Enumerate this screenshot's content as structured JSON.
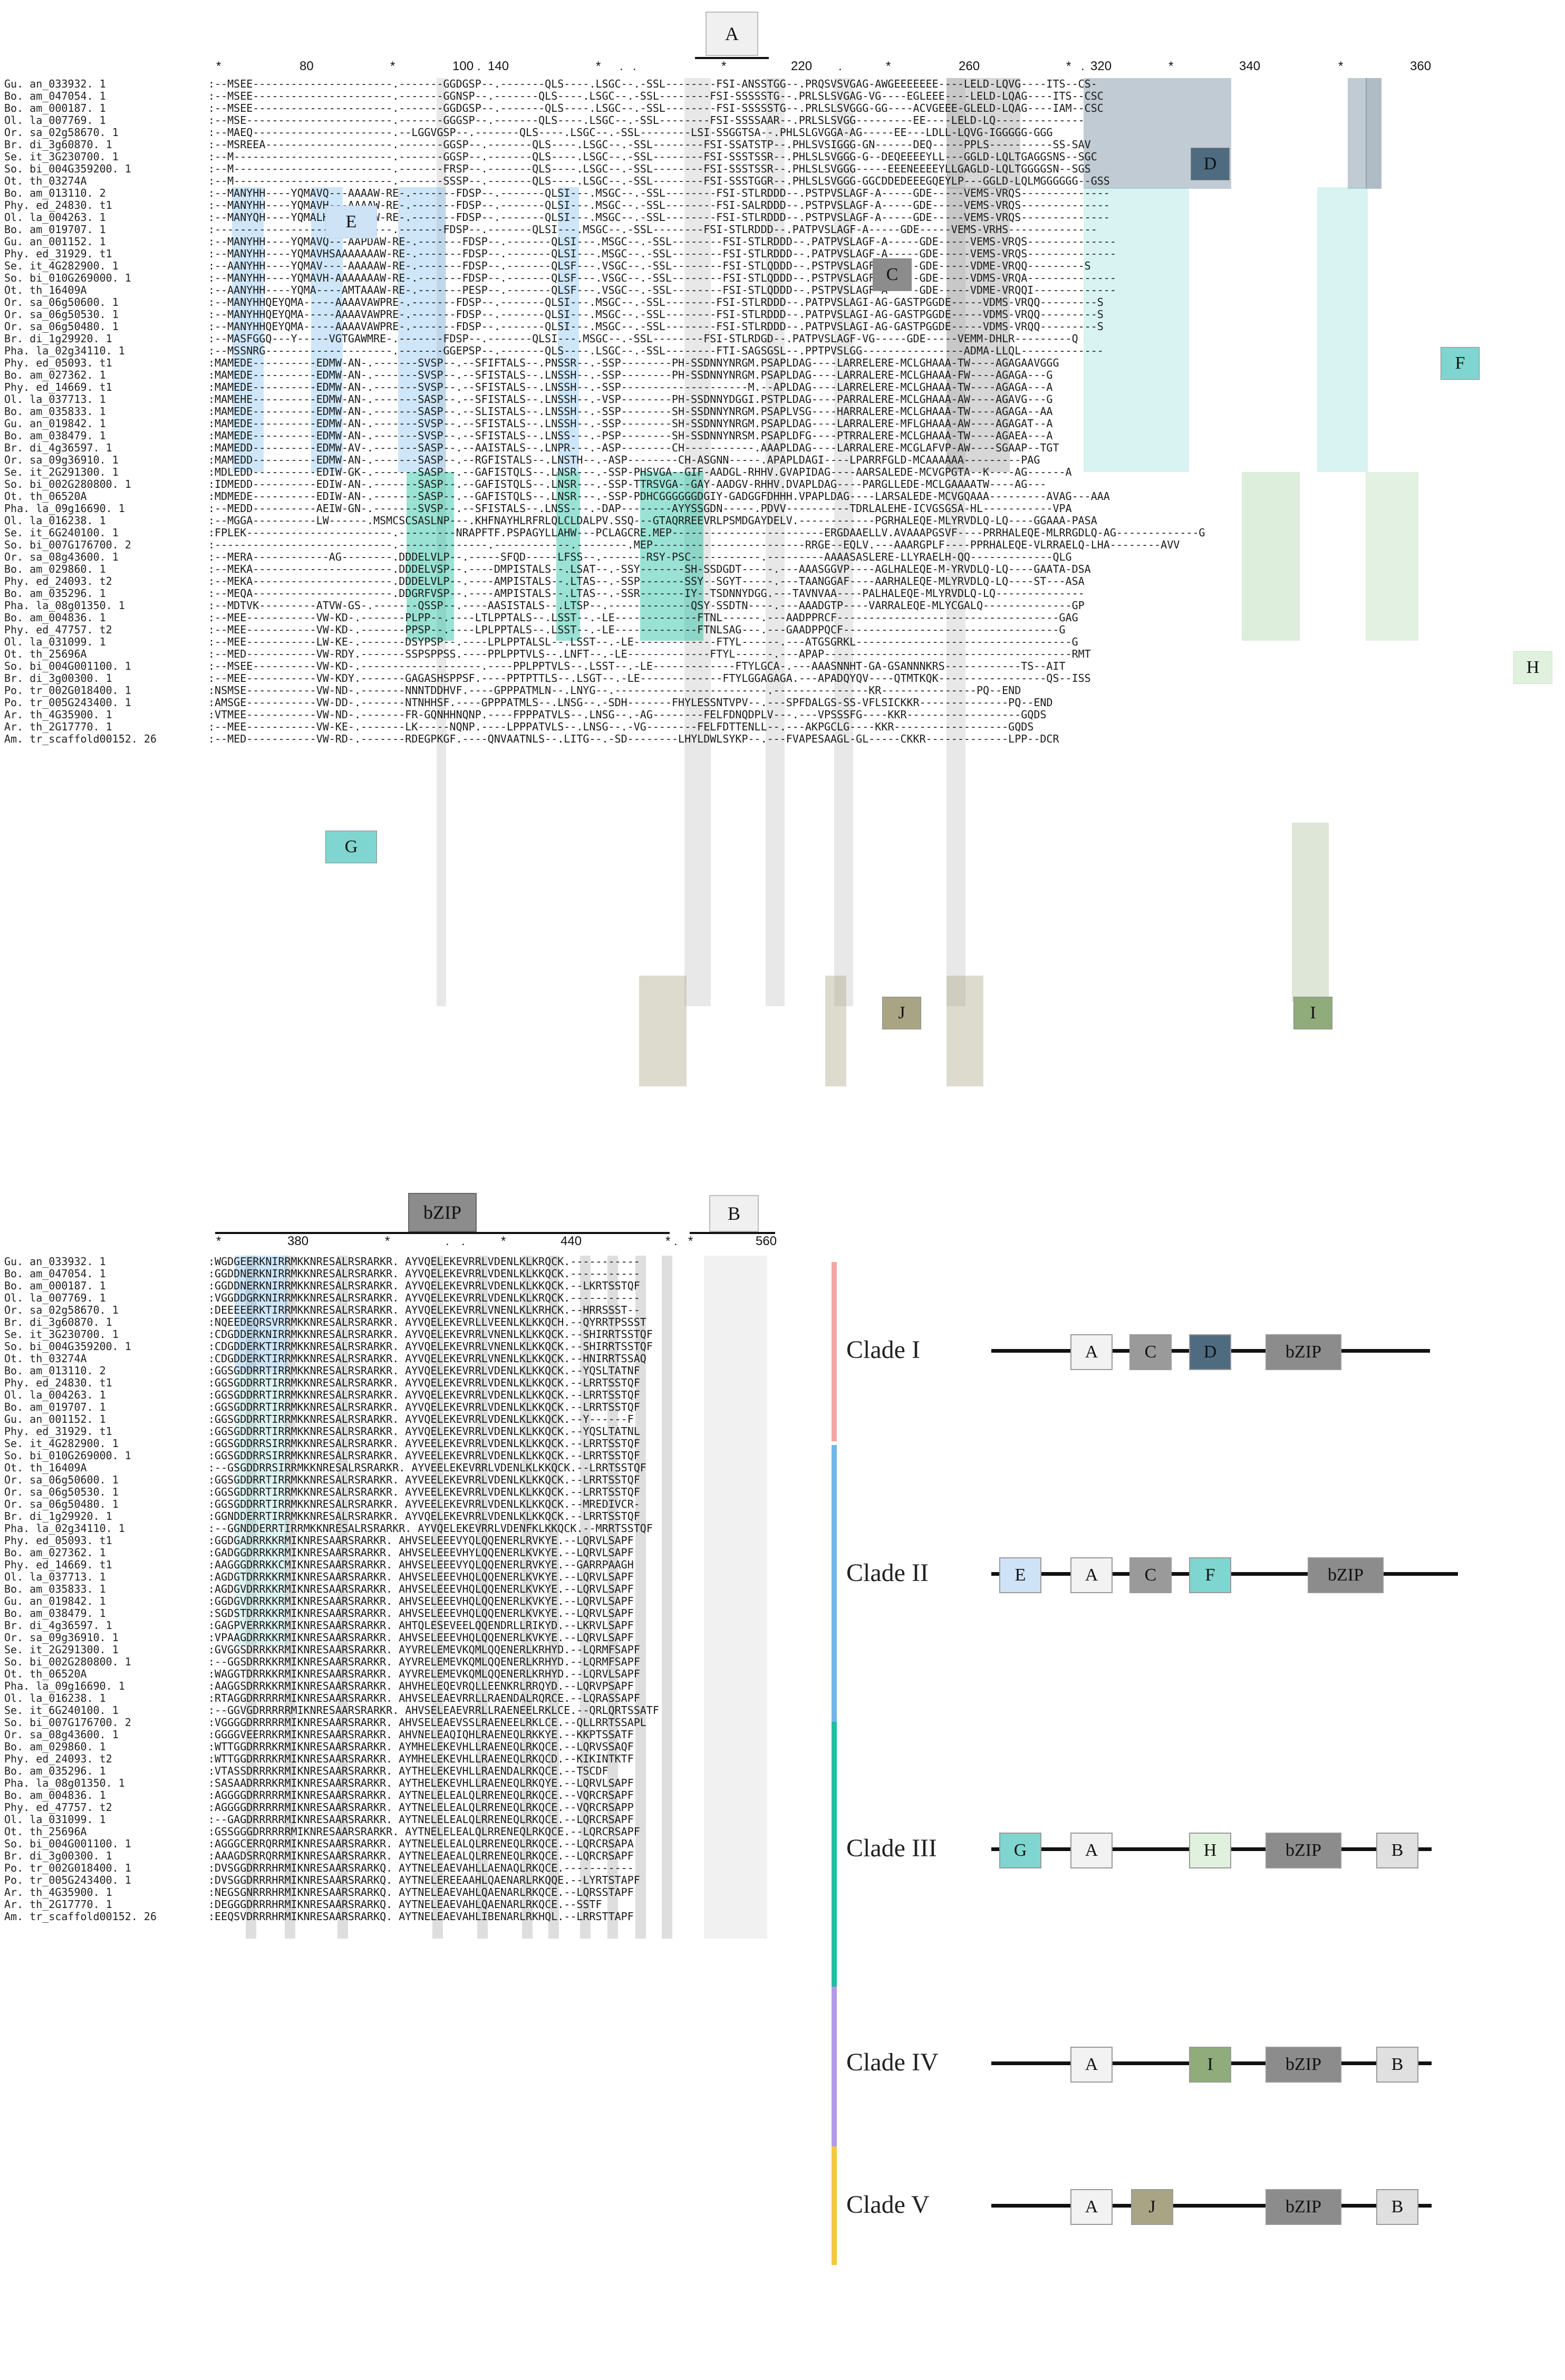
{
  "top": {
    "header_box": "A",
    "ruler": [
      "*",
      "80",
      "*",
      "100",
      ".",
      "140",
      "*",
      ".",
      ".",
      "*",
      "220",
      ".",
      "*",
      "260",
      "*",
      ".",
      "320",
      "*",
      "340",
      "*",
      "360"
    ],
    "names": [
      "Gu. an_033932. 1",
      "Bo. am_047054. 1",
      "Bo. am_000187. 1",
      "Ol. la_007769. 1",
      "Or. sa_02g58670. 1",
      "Br. di_3g60870. 1",
      "Se. it_3G230700. 1",
      "So. bi_004G359200. 1",
      "Ot. th_03274A",
      "Bo. am_013110. 2",
      "Phy. ed_24830. t1",
      "Ol. la_004263. 1",
      "Bo. am_019707. 1",
      "Gu. an_001152. 1",
      "Phy. ed_31929. t1",
      "Se. it_4G282900. 1",
      "So. bi_010G269000. 1",
      "Ot. th_16409A",
      "Or. sa_06g50600. 1",
      "Or. sa_06g50530. 1",
      "Or. sa_06g50480. 1",
      "Br. di_1g29920. 1",
      "Pha. la_02g34110. 1",
      "Phy. ed_05093. t1",
      "Bo. am_027362. 1",
      "Phy. ed_14669. t1",
      "Ol. la_037713. 1",
      "Bo. am_035833. 1",
      "Gu. an_019842. 1",
      "Bo. am_038479. 1",
      "Br. di_4g36597. 1",
      "Or. sa_09g36910. 1",
      "Se. it_2G291300. 1",
      "So. bi_002G280800. 1",
      "Ot. th_06520A",
      "Pha. la_09g16690. 1",
      "Ol. la_016238. 1",
      "Se. it_6G240100. 1",
      "So. bi_007G176700. 2",
      "Or. sa_08g43600. 1",
      "Bo. am_029860. 1",
      "Phy. ed_24093. t2",
      "Bo. am_035296. 1",
      "Pha. la_08g01350. 1",
      "Bo. am_004836. 1",
      "Phy. ed_47757. t2",
      "Ol. la_031099. 1",
      "Ot. th_25696A",
      "So. bi_004G001100. 1",
      "Br. di_3g00300. 1",
      "Po. tr_002G018400. 1",
      "Po. tr_005G243400. 1",
      "Ar. th_4G35900. 1",
      "Ar. th_2G17770. 1",
      "Am. tr_scaffold00152. 26"
    ],
    "seqs": [
      ":--MSEE----------------------.-------GGDGSP--.-------QLS----.LSGC--.-SSL--------FSI-ANSSTGG--.PRQSVSVGAG-AWGEEEEEEE----LELD-LQVG----ITS--CS-",
      ":--MSEE----------------------.-------GGNSP--.-------QLS----.LSGC--.-SSL--------FSI-SSSSSTG--.PRLSLSVGAG-VG----EGLEEE----LELD-LQAG----ITS--CSC",
      ":--MSEE----------------------.-------GGDGSP--.-------QLS----.LSGC--.-SSL--------FSI-SSSSSTG--.PRLSLSVGGG-GG----ACVGEEE-GLELD-LQAG----IAM--CSC",
      ":--MSE-----------------------.-------GGGSP--.-------QLS----.LSGC--.-SSL--------FSI-SSSSAAR--.PRLSLSVGG---------EE----LELD-LQ--------------",
      ":--MAEQ----------------------.--LGGVGSP--.-------QLS----.LSGC--.-SSL--------LSI-SSGGTSA--.PHLSLGVGGA-AG-----EE---LDLL-LQVG-IGGGGG-GGG",
      ":--MSREEA--------------------.-------GGSP--.-------QLS----.LSGC--.-SSL--------FSI-SSATSTP--.PHLSVSIGGG-GN------DEQ-----PPLS----------SS-SAV",
      ":--M-------------------------.-------GGSP--.-------QLS----.LSGC--.-SSL--------FSI-SSSTSSR--.PHLSLSVGGG-G--DEQEEEEYLL---GGLD-LQLTGAGGSNS--SGC",
      ":--M-------------------------.-------FRSP--.-------QLS----.LSGC--.-SSL--------FSI-SSSTSSR--.PHLSLSVGGG-----EEENEEEEYLLGAGLD-LQLTGGGGSN--SGS",
      ":--M-------------------------.-------SSSP--.-------QLS----.LSGC--.-SSL--------FSI-SSSTGGR--.PHLSLSVGGG-GGCDDEDEEEGQEYLP---GGLD-LQLMGGGGGG--GSS",
      ":--MANYHH----YQMAVQ---AAAAW-RE-.-------FDSP--.-------QLSI---.MSGC--.-SSL--------FSI-STLRDDD--.PSTPVSLAGF-A-----GDE-----VEMS-VRQS--------------",
      ":--MANYHH----YQMAVH---AAAAW-RE-.-------FDSP--.-------QLSI---.MSGC--.-SSL--------FSI-SALRDDD--.PSTPVSLAGF-A-----GDE-----VEMS-VRQS--------------",
      ":--MANYQH----YQMALH---AAAAW-RE-.-------FDSP--.-------QLSI---.MSGC--.-SSL--------FSI-STLRDDD--.PSTPVSLAGF-A-----GDE-----VEMS-VRQS--------------",
      ":----------------------------.-------FDSP--.-------QLSI---.MSGC--.-SSL--------FSI-STLRDDD--.PATPVSLAGF-A-----GDE-----VEMS-VRHS--------------",
      ":--MANYHH----YQMAVQ---AAPDAW-RE-.-------FDSP--.-------QLSI---.MSGC--.-SSL--------FSI-STLRDDD--.PATPVSLAGF-A-----GDE-----VEMS-VRQS--------------",
      ":--MANYHH----YQMAVHSAAAAAAAW-RE-.-------FDSP--.-------QLSI---.MSGC--.-SSL--------FSI-STLRDDD--.PATPVSLAGF-A-----GDE-----VEMS-VRQS--------------",
      ":--AANYHH----YQMAV----AAAAAW-RE-.-------FDSP--.-------QLSF---.VSGC--.-SSL--------FSI-STLQDDD--.PSTPVSLAGF-A-----GDE-----VDME-VRQQ---------S",
      ":--MANYHH----YQMAVH-AAAAAAAW-RE-.-------FDSP--.-------QLSF---.VSGC--.-SSL--------FSI-STLQDDD--.PSTPVSLAGFAA-----GDE-----VDMS-VRQA--------------",
      ":--AANYHH----YQMA----AMTAAAW-RE-.-------PESP--.-------QLSF---.VSGC--.-SSL--------FSI-STLQDDD--.PSTPVSLAGF-A-----GDE-----VDME-VRQQI-------------",
      ":--MANYHHQEYQMA-----AAAAVAWPRE-.-------FDSP--.-------QLSI---.MSGC--.-SSL--------FSI-STLRDDD--.PATPVSLAGI-AG-GASTPGGDE-----VDMS-VRQQ---------S",
      ":--MANYHHQEYQMA-----AAAAVAWPRE-.-------FDSP--.-------QLSI---.MSGC--.-SSL--------FSI-STLRDDD--.PATPVSLAGI-AG-GASTPGGDE-----VDMS-VRQQ---------S",
      ":--MANYHHQEYQMA-----AAAAVAWPRE-.-------FDSP--.-------QLSI---.MSGC--.-SSL--------FSI-STLRDDD--.PATPVSLAGI-AG-GASTPGGDE-----VDMS-VRQQ---------S",
      ":--MASFGGQ---Y-----VGTGAWMRE-.-------FDSP--.-------QLSI---.MSGC--.-SSL--------FSI-STLRDGD--.PATPVSLAGF-VG-----GDE-----VEMM-DHLR---------Q",
      ":--MSSNRG--------------------.-------GGEPSP--.-------QLS----.LSGC--.-SSL--------FTI-SAGSGSL--.PPTPVSLGG----------------ADMA-LLQL-------------",
      ":MAMEDE----------EDMW-AN-.-------SVSP--.--SFIFTALS--.PNSSR--.-SSP--------PH-SSDNNYNRGM.PSAPLDAG----LARRELERE-MCLGHAAA-TW----AGAGAAVGGG",
      ":MAMEDE----------EDMW-AN-.-------SVSP--.--SFISTALS--.LNSSH--.-SSP--------PH-SSDNNYNRGM.PSAPLDAG----LARRALERE-MCLGHAAA-FW----AGAGA---G",
      ":MAMEDE----------EDMW-AN-.-------SVSP--.--SFISTALS--.LNSSH--.-SSP--------------------M.--APLDAG----LARRELERE-MCLGHAAA-TW----AGAGA---A",
      ":MAMEHE----------EDMW-AN-.-------SASP--.--SFISTALS--.LNSSH--.-VSP--------PH-SSDNNYDGGI.PSTPLDAG----PARRALERE-MCLGHAAA-AW----AGAVG---G",
      ":MAMEDE----------EDMW-AN-.-------SASP--.--SLISTALS--.LNSSH--.-SSP--------SH-SSDNNYNRGM.PSAPLVSG----HARRALERE-MCLGHAAA-TW----AGAGA--AA",
      ":MAMEDE----------EDMW-AN-.-------SVSP--.--SFISTALS--.LNSSH--.-SSP--------SH-SSDNNYNRGM.PSAPLDAG----LARRALERE-MFLGHAAA-AW----AGAGAT--A",
      ":MAMEDE----------EDMW-AN-.-------SVSP--.--SFISTALS--.LNSS---.-PSP--------SH-SSDNNYNRSM.PSAPLDFG----PTRRALERE-MCLGHAAA-TW----AGAEA---A",
      ":MAMEDD----------EDMW-AV-.-------SASP--.--AAISTALS--.LNPR---.-ASP--------CH-----------.AAAPLDAG----LARRALERE-MCGLAFVP-AW----SGAAP--TGT",
      ":MAMEDD----------EDMW-AN-.-------SASP--.--RGFISTALS--.LNSTH--.-ASP--------CH-ASGNN-----.APAPLDAGI----LPARRFGLD-MCAAAAAA---------PAG",
      ":MDLEDD----------EDIW-GK-.-------SASP--.--GAFISTQLS--.LNSR---.-SSP-PHSVGA--GIF-AADGL-RHHV.GVAPIDAG----AARSALEDE-MCVGPGTA--K----AG------A",
      ":IDMEDD----------EDIW-AN-.-------SASP--.--GAFISTQLS--.LNSR---.-SSP-TTRSVGA--GAY-AADGV-RHHV.DVAPLDAG----PARGLLEDE-MCLGAAAATW----AG---",
      ":MDMEDE----------EDIW-AN-.-------SASP--.--GAFISTQLS--.LNSR---.-SSP-PDHCGGGGGGDGIY-GADGGFDHHH.VPAPLDAG----LARSALEDE-MCVGQAAA---------AVAG---AAA",
      ":--MEDD----------AEIW-GN-.-------SVSP--.--SFISTALS--.LNSS---.-DAP--------AYYSSGDN-----.PDVV----------TDRLALEHE-ICVGSGSA-HL-----------VPA",
      ":--MGGA----------LW------.MSMCSCSASLNP---.KHFNAYHLRFRLQLCLDALPV.SSQ---GTAQRREEVRLPSMDGAYDELV.------------PGRHALEQE-MLYRVDLQ-LQ----GGAAA-PASA",
      ":FPLEK-----------------------.---------NRAPFTF.PSPAGYLLAHW---PCLAGCRE.MEP------------------------ERGDAAELLV.AVAAAPGSVF----PRRHALEQE-MLRRGDLQ-AG-------------G",
      ":----------------------------.--------------.------------.--------.MEP------------------------RRGE--EQLV.---AAARGPLF----PPRHALEQE-VLRRAELQ-LHA--------AVV",
      ":--MERA------------AG--------.DDDELVLP--.-----SFQD-----LFSS--.-------RSY-PSC-----------.---------AAAASASLERE-LLYRAELH-QQ-------------QLG",
      ":--MEKA----------------------.DDDELVSP--.----DMPISTALS--.LSAT--.-SSY-------SH-SSDGDT-----.---AAASGGVP----AGLHALEQE-M-YRVDLQ-LQ----GAATA-DSA",
      ":--MEKA----------------------.DDDELVLP--.----AMPISTALS--.LTAS--.-SSP-------SSY--SGYT-----.---TAANGGAF----AARHALEQE-MLYRVDLQ-LQ----ST---ASA",
      ":--MEQA----------------------.DDGRFVSP--.----AMPISTALS--.LTAS--.-SSR-------IY--TSDNNYDGG.---TAVNVAA----PALHALEQE-MLYRVDLQ-LQ--------------",
      ":--MDTVK---------ATVW-GS-.-------QSSP--.----AASISTALS--.LTSP--.-------------QSY-SSDTN----.---AAADGTP----VARRALEQE-MLYCGALQ--------------GP",
      ":--MEE-----------VW-KD-.-------PLPP--.----LTLPPTALS--.LSST--.-LE-------------FTNL------.---AADPPRCF-----------------------------------GAG",
      ":--MEE-----------VW-KD-.-------PPSP--.----LPLPPTALS--.LSST--.-LE-------------FTNLSAG---.---GAADPPQCF----------------------------------G",
      ":--MEE-----------LW-KE-.-------DSYPSP--.----LPLPPTALSL--.LSST--.-LE-------------FTYL------.---ATGSGRKL----------------------------------G",
      ":--MED-----------VW-RDY.-------SSPSPPSS.----PPLPPTVLS--.LNFT--.-LE-------------FTYL------.---APAP---------------------------------------RMT",
      ":--MSEE----------VW-KD-.-------------------.----PPLPPTVLS--.LSST--.-LE-------------FTYLGCA-.---AAASNNHT-GA-GSANNNKRS------------TS--AIT",
      ":--MEE-----------VW-KDY.-------GAGASHSPPSF.----PPTPTTLS--.LSGT--.-LE-------------FTYLGGAGAGA.---APADQYQV----QTMTKQK-----------------QS--ISS",
      ":NSMSE-----------VW-ND-.-------NNNTDDHVF.----GPPPATMLN--.LNYG--.------------------------.---------------KR---------------PQ--END",
      ":AMSGE-----------VW-DD-.-------NTNHHSF.----GPPPATMLS--.LNSG--.-SDH-------FHYLESSNTVPV--.---SPFDALGS-SS-VFLSICKKR--------------PQ--END",
      ":VTMEE-----------VW-ND-.-------FR-GQNHHNQNP.----FPPPATVLS--.LNSG--.-AG--------FELFDNQDPLV---.---VPSSSFG----KKR------------------GQDS",
      ":--MEE-----------VW-KE-.-------LK-----NQNP.----LPPPATVLS--.LNSG--.-VG--------FELFDTTENLL--.---AKPGCLG----KKR------------------GQDS",
      ":--MED-----------VW-RD-.-------RDEGPKGF.----QNVAATNLS--.LITG--.-SD--------LHYLDWLSYKP--.---FVAPESAAGL-GL-----CKKR-------------LPP--DCR"
    ],
    "box_labels": {
      "C": "C",
      "D": "D",
      "E": "E",
      "F": "F",
      "G": "G",
      "H": "H",
      "I": "I",
      "J": "J"
    }
  },
  "bottom": {
    "header_bzip": "bZIP",
    "header_b": "B",
    "ruler": [
      "*",
      "380",
      "*",
      ".",
      ".",
      "*",
      "440",
      "*",
      ".",
      "*",
      "560"
    ],
    "names": [
      "Gu. an_033932. 1",
      "Bo. am_047054. 1",
      "Bo. am_000187. 1",
      "Ol. la_007769. 1",
      "Or. sa_02g58670. 1",
      "Br. di_3g60870. 1",
      "Se. it_3G230700. 1",
      "So. bi_004G359200. 1",
      "Ot. th_03274A",
      "Bo. am_013110. 2",
      "Phy. ed_24830. t1",
      "Ol. la_004263. 1",
      "Bo. am_019707. 1",
      "Gu. an_001152. 1",
      "Phy. ed_31929. t1",
      "Se. it_4G282900. 1",
      "So. bi_010G269000. 1",
      "Ot. th_16409A",
      "Or. sa_06g50600. 1",
      "Or. sa_06g50530. 1",
      "Or. sa_06g50480. 1",
      "Br. di_1g29920. 1",
      "Pha. la_02g34110. 1",
      "Phy. ed_05093. t1",
      "Bo. am_027362. 1",
      "Phy. ed_14669. t1",
      "Ol. la_037713. 1",
      "Bo. am_035833. 1",
      "Gu. an_019842. 1",
      "Bo. am_038479. 1",
      "Br. di_4g36597. 1",
      "Or. sa_09g36910. 1",
      "Se. it_2G291300. 1",
      "So. bi_002G280800. 1",
      "Ot. th_06520A",
      "Pha. la_09g16690. 1",
      "Ol. la_016238. 1",
      "Se. it_6G240100. 1",
      "So. bi_007G176700. 2",
      "Or. sa_08g43600. 1",
      "Bo. am_029860. 1",
      "Phy. ed_24093. t2",
      "Bo. am_035296. 1",
      "Pha. la_08g01350. 1",
      "Bo. am_004836. 1",
      "Phy. ed_47757. t2",
      "Ol. la_031099. 1",
      "Ot. th_25696A",
      "So. bi_004G001100. 1",
      "Br. di_3g00300. 1",
      "Po. tr_002G018400. 1",
      "Po. tr_005G243400. 1",
      "Ar. th_4G35900. 1",
      "Ar. th_2G17770. 1",
      "Am. tr_scaffold00152. 26"
    ],
    "seqs": [
      ":WGDGEERKNIRRMKKNRESALRSRARKR. AYVQELEKEVRRLVDENLKLKRQCK.-----------",
      ":GGDDNERKNIRRMKKNRESALRSRARKR. AYVQELEKEVRRLVDENLKLKKQCK.-----------",
      ":GGDDNERKNIRRMKKNRESALRSRARKR. AYVQELEKEVRRLVDENLKLKKQCK.--LKRTSSTQF",
      ":VGGDDGRKNIRRMKKNRESALRSRARKR. AYVQELEKEVRRLVDENLKLKRQCK.-----------",
      ":DEEEEERKTIRRMKKNRESALRSRARKR. AYVQELEKEVRRLVNENLKLKRHCK.--HRRSSST--",
      ":NQEEDEQRSVRRMKKNRESALRSRARKR. AYVQELEKEVRLLVEENLKLKKQCH.--QYRRTPSSST",
      ":CDGDDERKNIRRMKKNRESALRSRARKR. AYVQELEKEVRRLVNENLKLKKQCK.--SHIRRTSSTQF",
      ":CDGDDERKTIRRMKKNRESALRSRARKR. AYVQELEKEVRRLVNENLKLKKQCK.--SHIRRTSSTQF",
      ":CDGDDERKTIRRMKKNRESALRSRARKR. AYVQELEKEVRRLVNENLKLKKQCK.--HNIRRTSSAQ",
      ":GGSGDDRRTIRRMKKNRESALRSRARKR. AYVQELEKEVRRLVDENLKLKKQCK.--YQSLTATNF",
      ":GGSGDDRRTIRRMKKNRESALRSRARKR. AYVQELEKEVRRLVDENLKLKKQCK.--LRRTSSTQF",
      ":GGSGDDRRTIRRMKKNRESALRSRARKR. AYVQELEKEVRRLVDENLKLKKQCK.--LRRTSSTQF",
      ":GGSGDDRRTIRRMKKNRESALRSRARKR. AYVQELEKEVRRLVDENLKLKKQCK.--LRRTSSTQF",
      ":GGSGDDRRTIRRMKKNRESALRSRARKR. AYVQELEKEVRRLVDENLKLKKQCK.--Y------F",
      ":GGSGDDRRTIRRMKKNRESALRSRARKR. AYVQELEKEVRRLVDENLKLKKQCK.--YQSLTATNL",
      ":GGSGDDRRSIRRMKKNRESALRSRARKR. AYVEELEKEVRRLVDENLKLKKQCK.--LRRTSSTQF",
      ":GGSGDDRRSIRRMKKNRESALRSRARKR. AYVEELEKEVRRLVDENLKLKKQCK.--LRRTSSTQF",
      ":--GSGDDRRSIRRMKKNRESALRSRARKR. AYVEELEKEVRRLVDENLKLKKQCK.--LRRTSSTQF",
      ":GGSGDDRRTIRRMKKNRESALRSRARKR. AYVEELEKEVRRLVDENLKLKKQCK.--LRRTSSTQF",
      ":GGSGDDRRTIRRMKKNRESALRSRARKR. AYVEELEKEVRRLVDENLKLKKQCK.--LRRTSSTQF",
      ":GGSGDDRRTIRRMKKNRESALRSRARKR. AYVEELEKEVRRLVDENLKLKKQCK.--MREDIVCR-",
      ":GGNDDERRTIRRMKKNRESALRSRARKR. AYVQELEKEVRRLVDENLKLKKQCK.--LRRTSSTQF",
      ":--GGNDDERRTIRRMKKNRESALRSRARKR. AYVQELEKEVRRLVDENFKLKKQCK.--MRRTSSTQF",
      ":GGDGADRRKKRMIKNRESAARSRARKR. AHVSELEEEVYQLQQENERLRVKYE.--LQRVLSAPF",
      ":GADGGDRRKKRMIKNRESAARSRARKR. AHVSELEEEVHYLQQENERLKVKYE.--LQRVLSAPF",
      ":AAGGGDRRKKCMIKNRESAARSRARKR. AHVSELEEEVYQLQQENERLRVKYE.--GARRPAAGH",
      ":AGDGTDRRKKRMIKNRESAARSRARKR. AHVSELEEEVHQLQQENERLKVKYE.--LQRVLSAPF",
      ":AGDGVDRRKKRMIKNRESAARSRARKR. AHVSELEEEVHQLQQENERLKVKYE.--LQRVLSAPF",
      ":GGDGVDRRKKRMIKNRESAARSRARKR. AHVSELEEEVHQLQQENERLKVKYE.--LQRVLSAPF",
      ":SGDSTDRRKKRMIKNRESAARSRARKR. AHVSELEEEVHQLQQENERLKVKYE.--LQRVLSAPF",
      ":GAGPVERRKKRMIKNRESAARSRARKR. AHTQLESEVEELQQENDRLLRIKYD.--LKRVLSAPF",
      ":VPAAGDRRKKRMIKNRESAARSRARKR. AHVSELEEEVHQLQQENERLKVKYE.--LQRVLSAPF",
      ":GVGGSDRRKKRMIKNRESAARSRARKR. AYVRELEMEVKQMLQQENERLKRHYD.--LQRMFSAPF",
      ":--GGSDRRKKRMIKNRESAARSRARKR. AYVRELEMEVKQMLQQENERLKRHYD.--LQRMFSAPF",
      ":WAGGTDRRKKRMIKNRESAARSRARKR. AYVRELEMEVKQMLQQENERLKRHYD.--LQRVLSAPF",
      ":AAGGSDRRKKRMIKNRESAARSRARKR. AHVHELEQEVRQLLEENKRLRRQYD.--LQRVPSAPF",
      ":RTAGGDRRRRRMIKNRESAARSRARKR. AHVSELEAEVRRLLRAENDALRQRCE.--LQRASSAPF",
      ":--GGVGDRRRRRMIKNRESAARSRARKR. AHVSELEAEVRRLLRAENEELRKLCE.--QRLQRTSSATF",
      ":VGGGGDRRRRRMIKNRESAARSRARKR. AHVSELEAEVSSLRAENEELRKLCE.--QLLRRTSSAPL",
      ":GGGGVEERRKRMIKNRESAARSRARKR. AHVNELEAQIQHLRAENEQLRKKYE.--KKPTSSATF",
      ":WTTGGDRRRKRMIKNRESAARSRARKR. AYMHELEKEVHLLRAENEQLRKQCE.--LQRVSSAQF",
      ":WTTGGDRRRKRMIKNRESAARSRARKR. AYMHELEKEVHLLRAENEQLRKQCD.--KIKINTKTF",
      ":VTASSDRRRKRMIKNRESAARSRARKR. AYTHELEKEVHLLRAENDALRKQCE.--TSCDF",
      ":SASAADRRRKRMIKNRESAARSRARKR. AYTHELEKEVHLLRAENEQLRKQYE.--LQRVLSAPF",
      ":AGGGGDRRRRRMIKNRESAARSRARKR. AYTNELELEALQLRRENEQLRKQCE.--VQRCRSAPF",
      ":AGGGGDRRRRRMIKNRESAARSRARKR. AYTNELELEALQLRRENEQLRKQCE.--VQRCRSAPP",
      ":--GAGDRRRRRMIKNRESAARSRARKR. AYTNELELEALQLRRENEQLRKQCE.--LQRCRSAPF",
      ":GSSGGGDRRRRRMIKNRESAARSRARKR. AYTNELELEALQLRRENEQLRKQCE.--LQRCRSAPF",
      ":AGGGCERRQRRMIKNRESAARSRARKR. AYTNELELEALQLRRENEQLRKQCE.--LQRCRSAPA",
      ":AAAGDSRRQRRMIKNRESAARSRARKR. AYTNELEAEALQLRRENEQLRKQCE.--LQRCRSAPF",
      ":DVSGGDRRRHRMIKNRESAARSRARKQ. AYTNELEAEVAHLLAENAQLRKQCE.-----------",
      ":DVSGGDRRRHRMIKNRESAARSRARKQ. AYTNELEREEAAHLQAENARLRKQQE.--LYRTSTAPF",
      ":NEGSGNRRRHRMIKNRESAARSRARKQ. AYTNELEAEVAHLQAENARLRKQCE.--LQRSSTAPF",
      ":DEGGGDRRRHRMIKNRESAARSRARKQ. AYTNELEAEVAHLQAENARLRKQCE.--SSTF",
      ":EEQSVDRRRHRMIKNRESAARSRARKQ. AYTNELEAEVAHLIBENARLRKHQL.--LRRSTTAPF"
    ]
  },
  "clades": [
    {
      "label": "Clade I",
      "color": "#f4a6a6",
      "domains": [
        "A",
        "C",
        "D",
        "bZIP"
      ]
    },
    {
      "label": "Clade II",
      "color": "#72b6ea",
      "domains": [
        "E",
        "A",
        "C",
        "F",
        "bZIP"
      ]
    },
    {
      "label": "Clade III",
      "color": "#1fbfa0",
      "domains": [
        "G",
        "A",
        "H",
        "bZIP",
        "B"
      ]
    },
    {
      "label": "Clade IV",
      "color": "#b29ae6",
      "domains": [
        "A",
        "I",
        "bZIP",
        "B"
      ]
    },
    {
      "label": "Clade V",
      "color": "#f5c842",
      "domains": [
        "A",
        "J",
        "bZIP",
        "B"
      ]
    }
  ],
  "domain_colors": {
    "A": "#f2f2f2",
    "B": "#e0e0e0",
    "C": "#9a9a9a",
    "D": "#4e6b80",
    "E": "#cfe3f7",
    "F": "#7fd6d0",
    "G": "#7fd6d0",
    "H": "#e0f2de",
    "I": "#8fac7a",
    "J": "#a9a584",
    "bZIP": "#8c8c8c"
  }
}
